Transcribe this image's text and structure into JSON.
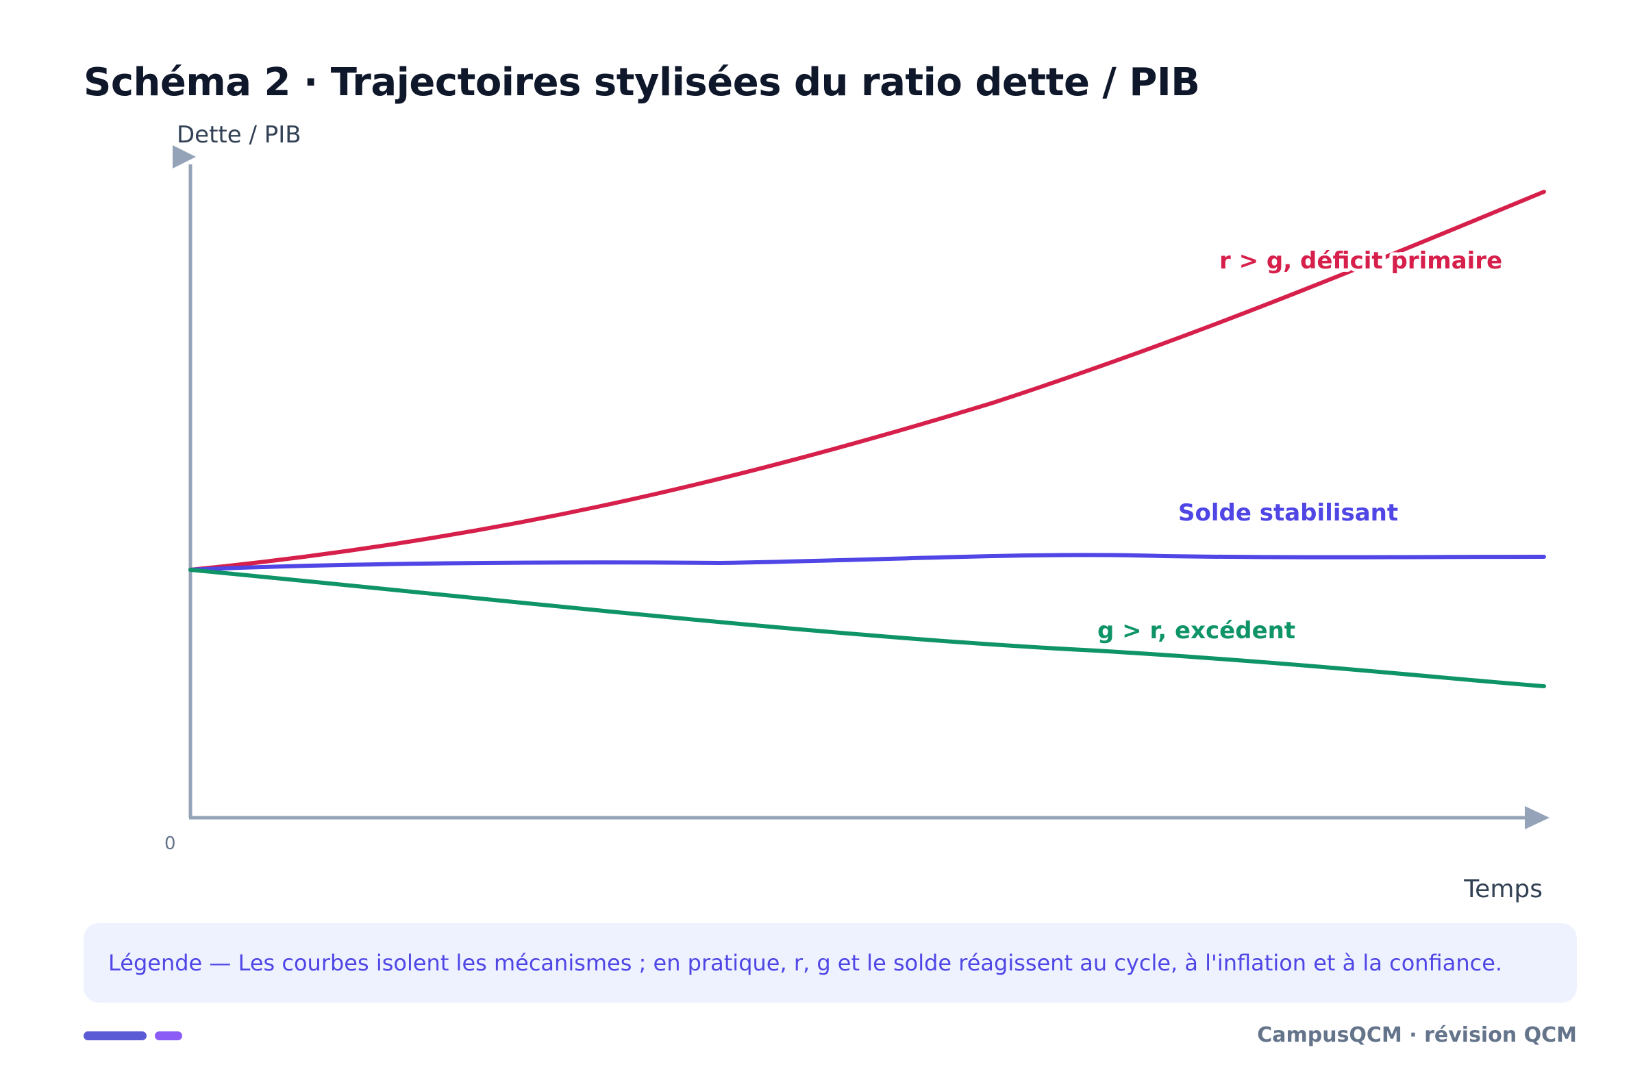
{
  "title": "Schéma 2 · Trajectoires stylisées du ratio dette / PIB",
  "axes": {
    "y_label": "Dette / PIB",
    "x_label": "Temps",
    "origin_label": "0",
    "color": "#94a3b8"
  },
  "curves": [
    {
      "name": "deficit",
      "label": "r > g, déficit primaire",
      "color": "#d6204b",
      "trend": "rising"
    },
    {
      "name": "stabilisant",
      "label": "Solde stabilisant",
      "color": "#4f46e5",
      "trend": "flat"
    },
    {
      "name": "excedent",
      "label": "g > r, excédent",
      "color": "#0f9467",
      "trend": "falling"
    }
  ],
  "legend": {
    "text": "Légende — Les courbes isolent les mécanismes ; en pratique, r, g et le solde réagissent au cycle, à l'inflation et à la confiance.",
    "background": "#eef2ff",
    "color": "#4f46e5"
  },
  "footer": {
    "text": "CampusQCM · révision QCM"
  }
}
